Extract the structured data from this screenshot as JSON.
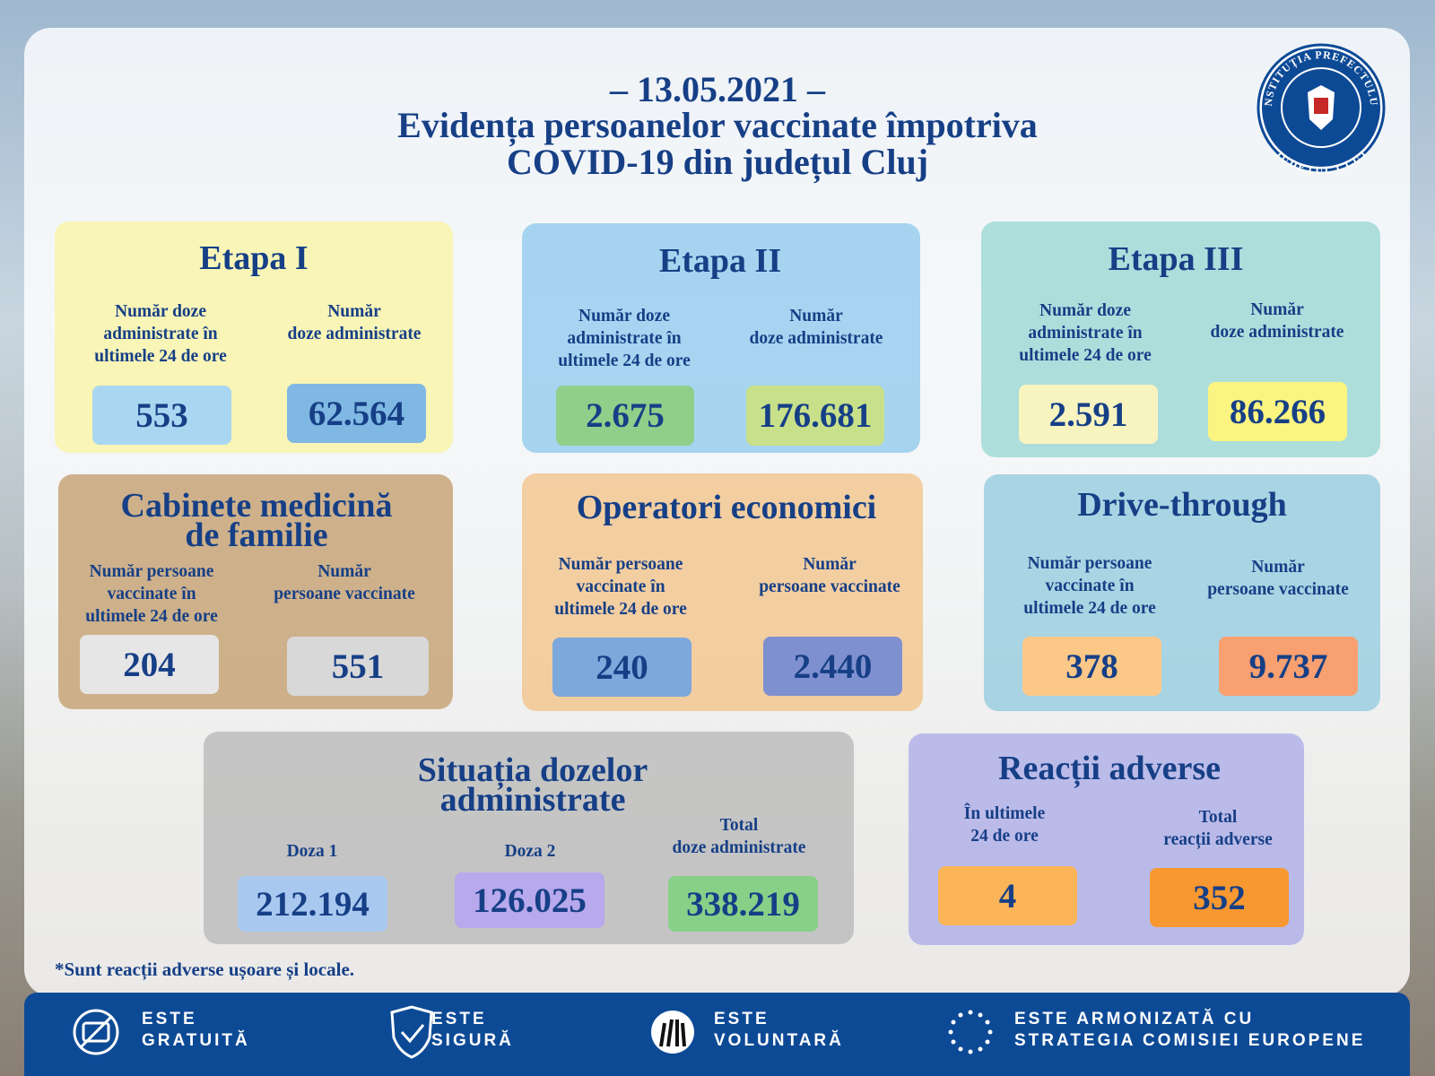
{
  "header": {
    "date": "– 13.05.2021 –",
    "title": "Evidența persoanelor vaccinate împotriva\nCOVID-19 din județul Cluj"
  },
  "logo": {
    "top": "INSTITUȚIA PREFECTULUI",
    "bottom": "JUDEȚUL CLUJ"
  },
  "panels": [
    {
      "title": "Etapa I",
      "columns": [
        {
          "label": "Număr doze\nadministrate în\nultimele 24 de ore",
          "value": "553"
        },
        {
          "label": "Număr\ndoze administrate",
          "value": "62.564"
        }
      ]
    },
    {
      "title": "Etapa II",
      "columns": [
        {
          "label": "Număr doze\nadministrate în\nultimele 24 de ore",
          "value": "2.675"
        },
        {
          "label": "Număr\ndoze administrate",
          "value": "176.681"
        }
      ]
    },
    {
      "title": "Etapa III",
      "columns": [
        {
          "label": "Număr doze\nadministrate în\nultimele 24 de ore",
          "value": "2.591"
        },
        {
          "label": "Număr\ndoze administrate",
          "value": "86.266"
        }
      ]
    },
    {
      "title": "Cabinete medicină\nde familie",
      "columns": [
        {
          "label": "Număr persoane\nvaccinate în\nultimele 24 de ore",
          "value": "204"
        },
        {
          "label": "Număr\npersoane vaccinate",
          "value": "551"
        }
      ]
    },
    {
      "title": "Operatori economici",
      "columns": [
        {
          "label": "Număr persoane\nvaccinate în\nultimele 24 de ore",
          "value": "240"
        },
        {
          "label": "Număr\npersoane vaccinate",
          "value": "2.440"
        }
      ]
    },
    {
      "title": "Drive-through",
      "columns": [
        {
          "label": "Număr persoane\nvaccinate în\nultimele 24 de ore",
          "value": "378"
        },
        {
          "label": "Număr\npersoane vaccinate",
          "value": "9.737"
        }
      ]
    },
    {
      "title": "Situația dozelor administrate",
      "columns": [
        {
          "label": "Doza 1",
          "value": "212.194"
        },
        {
          "label": "Doza 2",
          "value": "126.025"
        },
        {
          "label": "Total\ndoze administrate",
          "value": "338.219"
        }
      ]
    },
    {
      "title": "Reacții adverse",
      "columns": [
        {
          "label": "În ultimele\n24 de ore",
          "value": "4"
        },
        {
          "label": "Total\nreacții adverse",
          "value": "352"
        }
      ]
    }
  ],
  "footnote": "*Sunt reacții adverse ușoare și locale.",
  "footer": [
    "ESTE\nGRATUITĂ",
    "ESTE\nSIGURĂ",
    "ESTE\nVOLUNTARĂ",
    "ESTE ARMONIZATĂ CU\nSTRATEGIA COMISIEI EUROPENE"
  ]
}
